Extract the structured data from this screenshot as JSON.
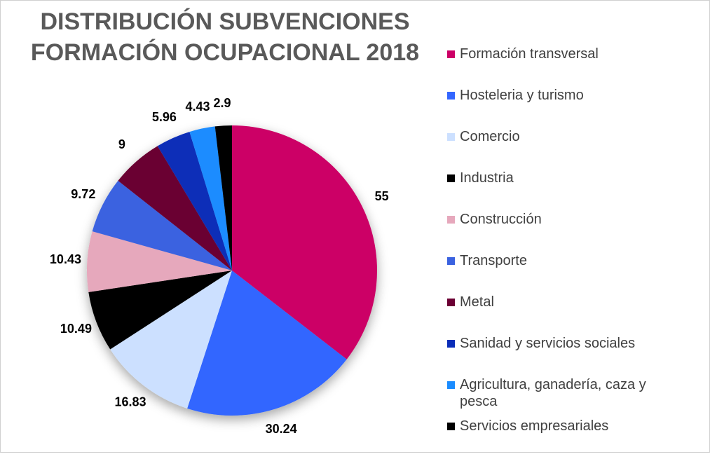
{
  "chart_data": {
    "type": "pie",
    "title": "DISTRIBUCIÓN SUBVENCIONES FORMACIÓN OCUPACIONAL 2018",
    "categories": [
      "Formación transversal",
      "Hosteleria y turismo",
      "Comercio",
      "Industria",
      "Construcción",
      "Transporte",
      "Metal",
      "Sanidad y servicios sociales",
      "Agricultura, ganadería, caza y pesca",
      "Servicios empresariales"
    ],
    "values": [
      55,
      30.24,
      16.83,
      10.49,
      10.43,
      9.72,
      9,
      5.96,
      4.43,
      2.9
    ],
    "colors": [
      "#cc0066",
      "#3366ff",
      "#cce0ff",
      "#000000",
      "#e6a8bc",
      "#3a62e0",
      "#6b0033",
      "#0a2db8",
      "#1a8cff",
      "#000000"
    ],
    "legend": "right"
  }
}
